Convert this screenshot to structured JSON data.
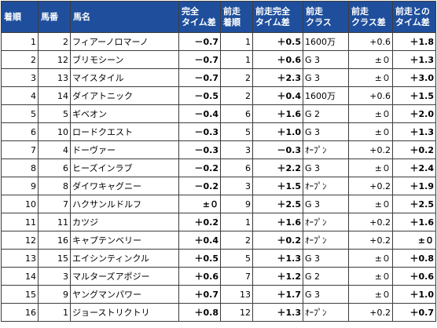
{
  "columns": [
    "着順",
    "馬番",
    "馬名",
    "完全\nタイム差",
    "前走\n着順",
    "前走完全\nタイム差",
    "前走\nクラス",
    "前走\nクラス差",
    "前走との\nタイム差"
  ],
  "rows": [
    {
      "rank": "1",
      "num": "2",
      "name": "フィアーノロマーノ",
      "diff": "－0.7",
      "diff_red": true,
      "prev_rank": "1",
      "prev_diff": "＋0.5",
      "prev_red": false,
      "prev_class": "1600万",
      "class_diff": "+0.6",
      "vs_prev": "＋1.8"
    },
    {
      "rank": "2",
      "num": "12",
      "name": "ブリモシーン",
      "diff": "－0.7",
      "diff_red": true,
      "prev_rank": "1",
      "prev_diff": "＋0.6",
      "prev_red": false,
      "prev_class": "G 3",
      "class_diff": "±０",
      "vs_prev": "＋1.3"
    },
    {
      "rank": "3",
      "num": "13",
      "name": "マイスタイル",
      "diff": "－0.7",
      "diff_red": true,
      "prev_rank": "2",
      "prev_diff": "＋2.3",
      "prev_red": false,
      "prev_class": "G 3",
      "class_diff": "±０",
      "vs_prev": "＋3.0"
    },
    {
      "rank": "4",
      "num": "14",
      "name": "ダイアトニック",
      "diff": "－0.5",
      "diff_red": true,
      "prev_rank": "2",
      "prev_diff": "＋0.4",
      "prev_red": false,
      "prev_class": "1600万",
      "class_diff": "+0.6",
      "vs_prev": "＋1.5"
    },
    {
      "rank": "5",
      "num": "5",
      "name": "ギベオン",
      "diff": "－0.4",
      "diff_red": true,
      "prev_rank": "6",
      "prev_diff": "＋1.6",
      "prev_red": false,
      "prev_class": "G 2",
      "class_diff": "±０",
      "vs_prev": "＋2.0"
    },
    {
      "rank": "6",
      "num": "10",
      "name": "ロードクエスト",
      "diff": "－0.3",
      "diff_red": true,
      "prev_rank": "5",
      "prev_diff": "＋1.0",
      "prev_red": false,
      "prev_class": "G 3",
      "class_diff": "±０",
      "vs_prev": "＋1.3"
    },
    {
      "rank": "7",
      "num": "4",
      "name": "ドーヴァー",
      "diff": "－0.3",
      "diff_red": true,
      "prev_rank": "3",
      "prev_diff": "－0.3",
      "prev_red": true,
      "prev_class": "ｵｰﾌﾟﾝ",
      "class_diff": "+0.2",
      "vs_prev": "＋0.2"
    },
    {
      "rank": "8",
      "num": "6",
      "name": "ヒーズインラブ",
      "diff": "－0.2",
      "diff_red": true,
      "prev_rank": "6",
      "prev_diff": "＋2.2",
      "prev_red": false,
      "prev_class": "G 3",
      "class_diff": "±０",
      "vs_prev": "＋2.4"
    },
    {
      "rank": "9",
      "num": "8",
      "name": "ダイワキャグニー",
      "diff": "－0.2",
      "diff_red": true,
      "prev_rank": "3",
      "prev_diff": "＋1.5",
      "prev_red": false,
      "prev_class": "ｵｰﾌﾟﾝ",
      "class_diff": "+0.2",
      "vs_prev": "＋1.9"
    },
    {
      "rank": "10",
      "num": "7",
      "name": "ハクサンルドルフ",
      "diff": "±０",
      "diff_red": false,
      "prev_rank": "9",
      "prev_diff": "＋2.5",
      "prev_red": false,
      "prev_class": "G 3",
      "class_diff": "±０",
      "vs_prev": "＋2.5"
    },
    {
      "rank": "11",
      "num": "11",
      "name": "カツジ",
      "diff": "＋0.2",
      "diff_red": false,
      "prev_rank": "1",
      "prev_diff": "＋1.6",
      "prev_red": false,
      "prev_class": "ｵｰﾌﾟﾝ",
      "class_diff": "+0.2",
      "vs_prev": "＋1.6"
    },
    {
      "rank": "12",
      "num": "16",
      "name": "キャプテンベリー",
      "diff": "＋0.4",
      "diff_red": false,
      "prev_rank": "2",
      "prev_diff": "＋0.2",
      "prev_red": false,
      "prev_class": "ｵｰﾌﾟﾝ",
      "class_diff": "+0.2",
      "vs_prev": "±０"
    },
    {
      "rank": "13",
      "num": "15",
      "name": "エイシンティンクル",
      "diff": "＋0.5",
      "diff_red": false,
      "prev_rank": "5",
      "prev_diff": "＋1.3",
      "prev_red": false,
      "prev_class": "G 3",
      "class_diff": "±０",
      "vs_prev": "＋0.8"
    },
    {
      "rank": "14",
      "num": "3",
      "name": "マルターズアポジー",
      "diff": "＋0.6",
      "diff_red": false,
      "prev_rank": "7",
      "prev_diff": "＋1.2",
      "prev_red": false,
      "prev_class": "G 2",
      "class_diff": "±０",
      "vs_prev": "＋0.6"
    },
    {
      "rank": "15",
      "num": "9",
      "name": "ヤングマンパワー",
      "diff": "＋0.7",
      "diff_red": false,
      "prev_rank": "13",
      "prev_diff": "＋1.7",
      "prev_red": false,
      "prev_class": "G 3",
      "class_diff": "±０",
      "vs_prev": "＋1.0"
    },
    {
      "rank": "16",
      "num": "1",
      "name": "ジョーストリクトリ",
      "diff": "＋0.8",
      "diff_red": false,
      "prev_rank": "12",
      "prev_diff": "＋1.3",
      "prev_red": false,
      "prev_class": "ｵｰﾌﾟﾝ",
      "class_diff": "+0.2",
      "vs_prev": "＋0.7"
    }
  ]
}
